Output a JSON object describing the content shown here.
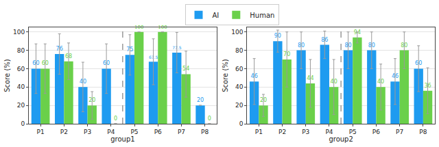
{
  "chart_data": [
    {
      "type": "bar",
      "x_label": "group1",
      "y_label": "Score (%)",
      "categories": [
        "P1",
        "P2",
        "P3",
        "P4",
        "P5",
        "P6",
        "P7",
        "P8"
      ],
      "series": [
        {
          "name": "AI",
          "color": "#1e9bf0",
          "values": [
            60,
            76,
            40,
            60,
            75,
            67.5,
            77.5,
            20
          ],
          "errors": [
            27,
            22,
            27,
            27,
            22,
            25,
            22,
            0
          ]
        },
        {
          "name": "Human",
          "color": "#6ad04a",
          "values": [
            60,
            68,
            20,
            0,
            100,
            100,
            54,
            0
          ],
          "errors": [
            27,
            20,
            15,
            0,
            0,
            0,
            25,
            0
          ]
        }
      ],
      "ylim": [
        0,
        105
      ],
      "yticks": [
        0,
        20,
        40,
        60,
        80,
        100
      ],
      "grid": true,
      "legend": "top",
      "data_labels": true
    },
    {
      "type": "bar",
      "x_label": "group2",
      "y_label": "Score (%)",
      "categories": [
        "P1",
        "P2",
        "P3",
        "P4",
        "P5",
        "P6",
        "P7",
        "P8"
      ],
      "series": [
        {
          "name": "AI",
          "color": "#1e9bf0",
          "values": [
            46,
            90,
            80,
            86,
            80,
            80,
            46,
            60
          ],
          "errors": [
            25,
            12,
            20,
            15,
            20,
            20,
            25,
            25
          ]
        },
        {
          "name": "Human",
          "color": "#6ad04a",
          "values": [
            20,
            70,
            44,
            40,
            94,
            40,
            80,
            36
          ],
          "errors": [
            12,
            30,
            26,
            30,
            6,
            25,
            20,
            25
          ]
        }
      ],
      "ylim": [
        0,
        105
      ],
      "yticks": [
        0,
        20,
        40,
        60,
        80,
        100
      ],
      "grid": true,
      "legend": "top",
      "data_labels": true
    }
  ]
}
